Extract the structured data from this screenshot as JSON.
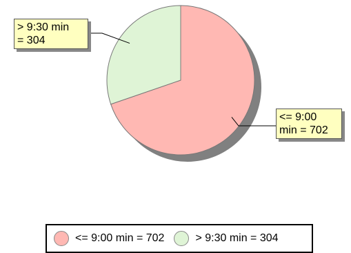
{
  "chart_data": {
    "type": "pie",
    "title": "",
    "slices": [
      {
        "label": "<= 9:00 min",
        "value": 702,
        "color": "#ffb8b3",
        "callout": "<= 9:00\nmin = 702",
        "legend": "<= 9:00 min = 702"
      },
      {
        "label": "> 9:30 min",
        "value": 304,
        "color": "#dff4d6",
        "callout": "> 9:30 min\n= 304",
        "legend": "> 9:30 min = 304"
      }
    ],
    "start_angle_deg": 0,
    "direction": "clockwise",
    "shadow_color": "#808080",
    "legend_position": "bottom"
  }
}
